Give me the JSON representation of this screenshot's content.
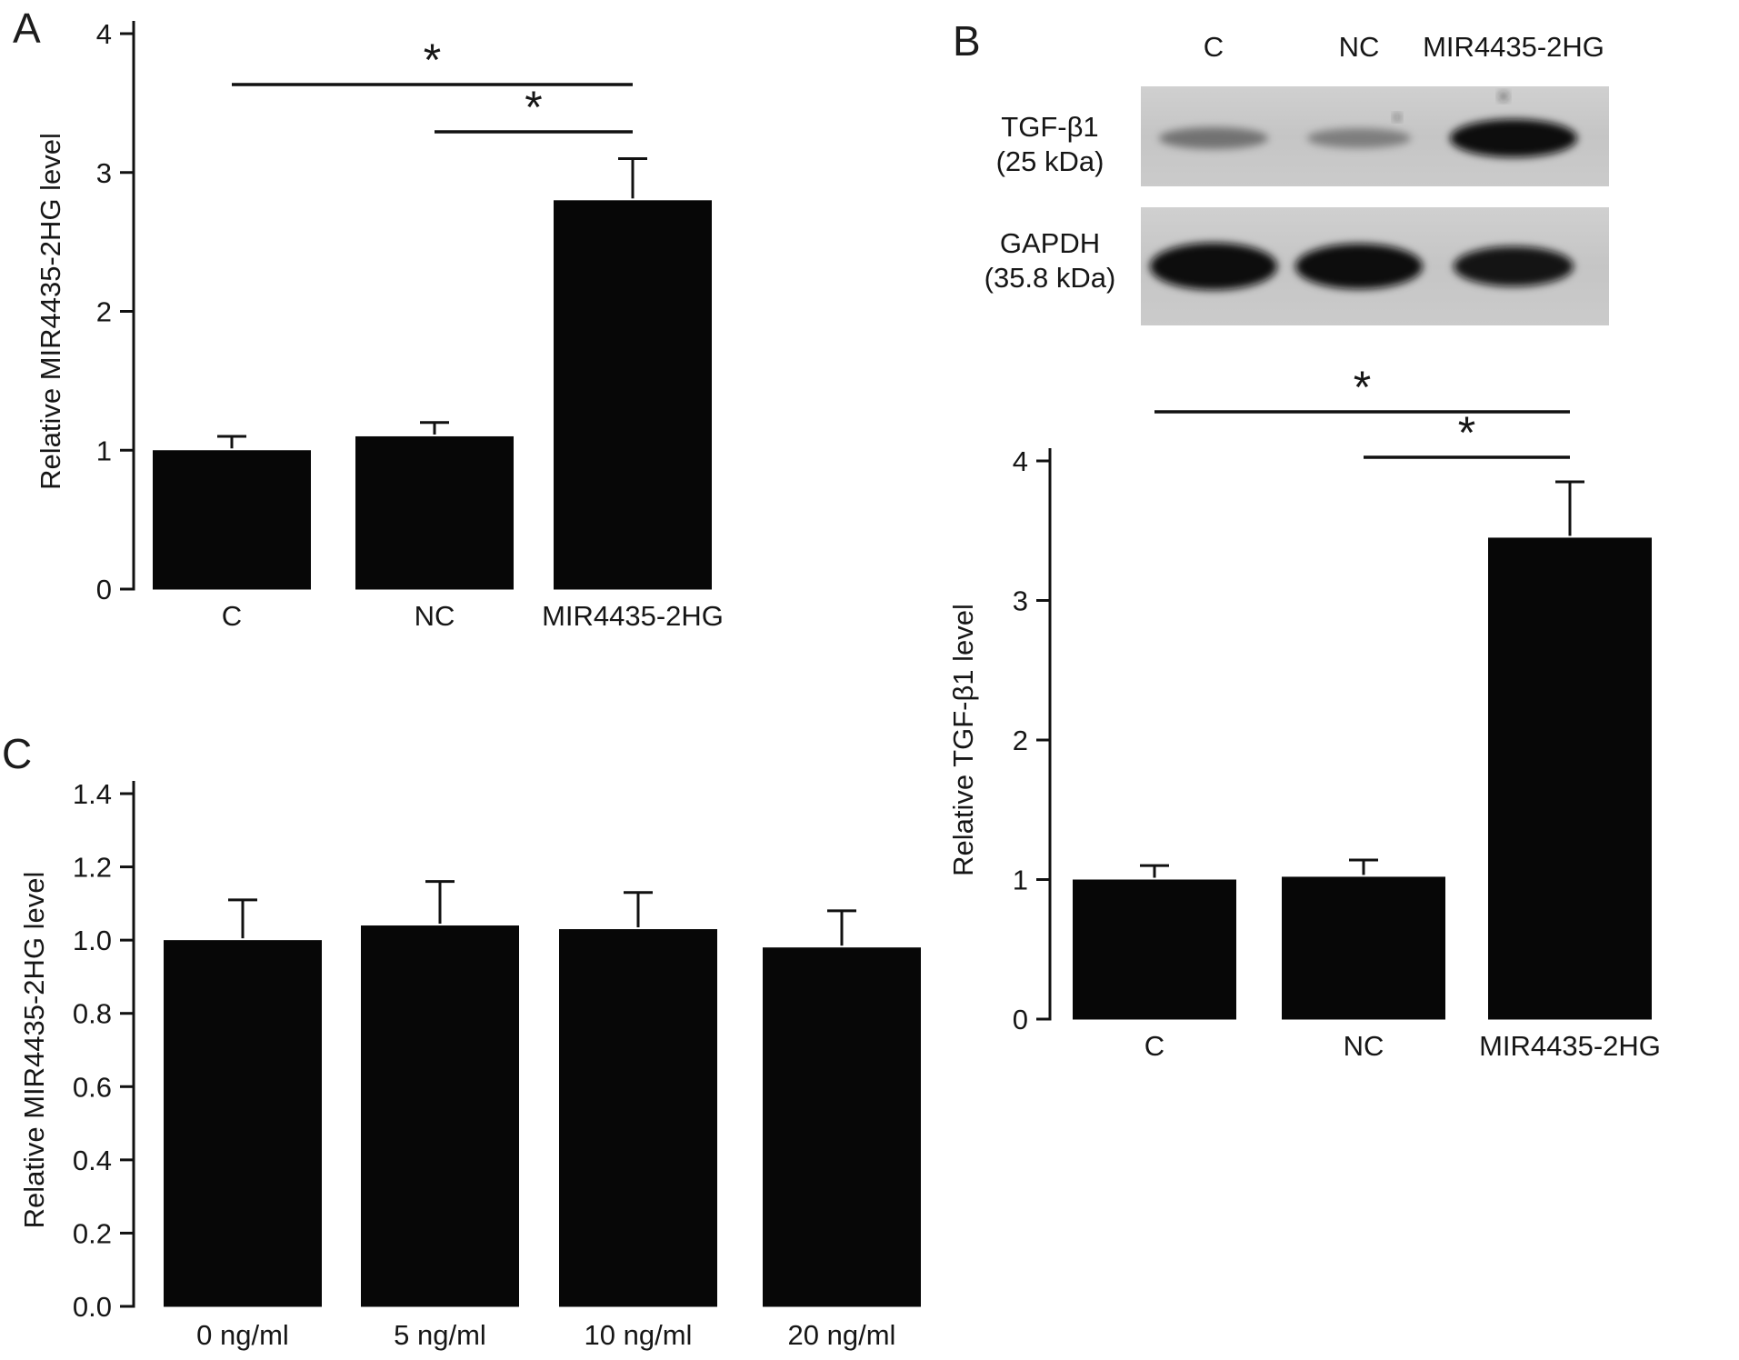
{
  "figure": {
    "panel_labels": {
      "A": "A",
      "B": "B",
      "C": "C"
    }
  },
  "western_blot": {
    "lane_labels": [
      "C",
      "NC",
      "MIR4435-2HG"
    ],
    "rows": [
      {
        "label": "TGF-β1",
        "sublabel": "(25 kDa)",
        "band_intensities": [
          0.42,
          0.36,
          1.0
        ]
      },
      {
        "label": "GAPDH",
        "sublabel": "(35.8 kDa)",
        "band_intensities": [
          1.0,
          1.0,
          0.96
        ]
      }
    ]
  },
  "chart_data": [
    {
      "panel": "A",
      "type": "bar",
      "title": "",
      "ylabel": "Relative MIR4435-2HG level",
      "xlabel": "",
      "ylim": [
        0,
        4
      ],
      "yticks": [
        0,
        1,
        2,
        3,
        4
      ],
      "ytick_labels": [
        "0",
        "1",
        "2",
        "3",
        "4"
      ],
      "categories": [
        "C",
        "NC",
        "MIR4435-2HG"
      ],
      "values": [
        1.0,
        1.1,
        2.8
      ],
      "errors": [
        0.1,
        0.1,
        0.3
      ],
      "bar_color": "#070707",
      "grid": false,
      "significance": [
        {
          "from": 0,
          "to": 2,
          "label": "*"
        },
        {
          "from": 1,
          "to": 2,
          "label": "*"
        }
      ]
    },
    {
      "panel": "B",
      "type": "bar",
      "title": "",
      "ylabel": "Relative TGF-β1 level",
      "xlabel": "",
      "ylim": [
        0,
        4
      ],
      "yticks": [
        0,
        1,
        2,
        3,
        4
      ],
      "ytick_labels": [
        "0",
        "1",
        "2",
        "3",
        "4"
      ],
      "categories": [
        "C",
        "NC",
        "MIR4435-2HG"
      ],
      "values": [
        1.0,
        1.02,
        3.45
      ],
      "errors": [
        0.1,
        0.12,
        0.4
      ],
      "bar_color": "#070707",
      "grid": false,
      "significance": [
        {
          "from": 0,
          "to": 2,
          "label": "*"
        },
        {
          "from": 1,
          "to": 2,
          "label": "*"
        }
      ]
    },
    {
      "panel": "C",
      "type": "bar",
      "title": "",
      "ylabel": "Relative MIR4435-2HG level",
      "xlabel": "",
      "ylim": [
        0,
        1.4
      ],
      "yticks": [
        0,
        0.2,
        0.4,
        0.6,
        0.8,
        1.0,
        1.2,
        1.4
      ],
      "ytick_labels": [
        "0.0",
        "0.2",
        "0.4",
        "0.6",
        "0.8",
        "1.0",
        "1.2",
        "1.4"
      ],
      "categories": [
        "0 ng/ml",
        "5 ng/ml",
        "10 ng/ml",
        "20 ng/ml"
      ],
      "values": [
        1.0,
        1.04,
        1.03,
        0.98
      ],
      "errors": [
        0.11,
        0.12,
        0.1,
        0.1
      ],
      "bar_color": "#070707",
      "grid": false,
      "significance": []
    }
  ]
}
